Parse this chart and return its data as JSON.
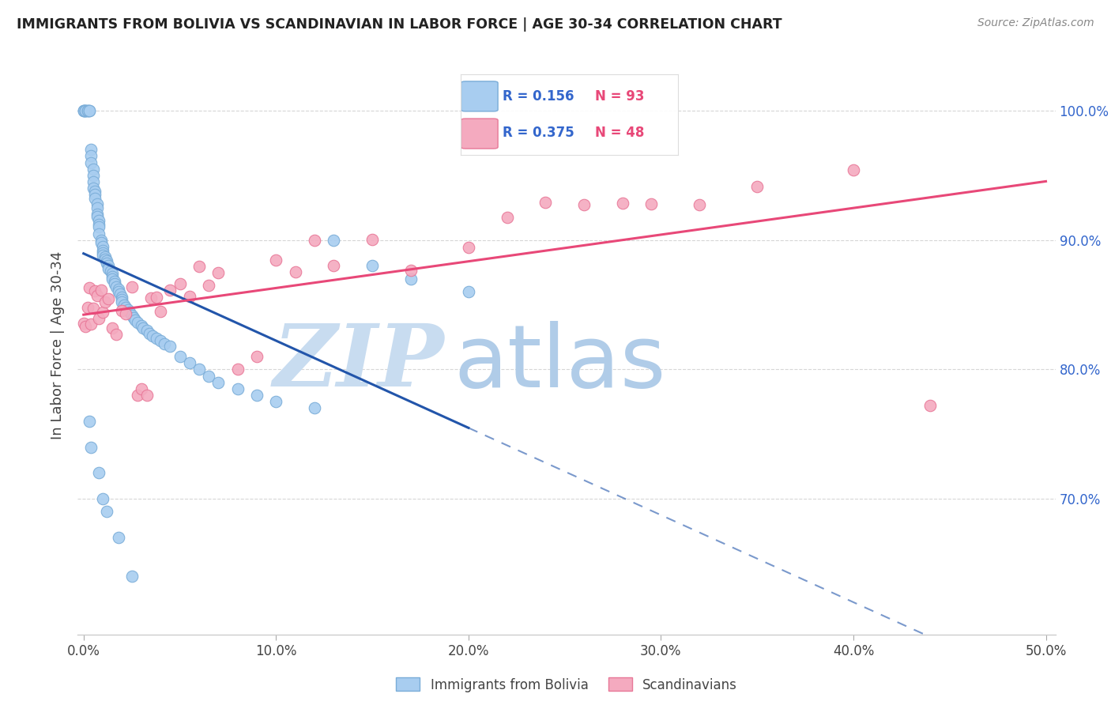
{
  "title": "IMMIGRANTS FROM BOLIVIA VS SCANDINAVIAN IN LABOR FORCE | AGE 30-34 CORRELATION CHART",
  "source": "Source: ZipAtlas.com",
  "ylabel": "In Labor Force | Age 30-34",
  "xlim": [
    -0.003,
    0.505
  ],
  "ylim": [
    0.595,
    1.042
  ],
  "ytick_labels": [
    "70.0%",
    "80.0%",
    "90.0%",
    "100.0%"
  ],
  "ytick_values": [
    0.7,
    0.8,
    0.9,
    1.0
  ],
  "xtick_labels": [
    "0.0%",
    "10.0%",
    "20.0%",
    "30.0%",
    "40.0%",
    "50.0%"
  ],
  "xtick_values": [
    0.0,
    0.1,
    0.2,
    0.3,
    0.4,
    0.5
  ],
  "bolivia_color": "#A8CDF0",
  "scandinavia_color": "#F4AABF",
  "bolivia_edge_color": "#7AADD8",
  "scandinavia_edge_color": "#E87898",
  "bolivia_line_color": "#2255AA",
  "scandinavia_line_color": "#E84878",
  "legend_R_color": "#3366CC",
  "legend_N_color": "#E84878",
  "watermark_zip_color": "#C8DCF0",
  "watermark_atlas_color": "#B0CCE8"
}
